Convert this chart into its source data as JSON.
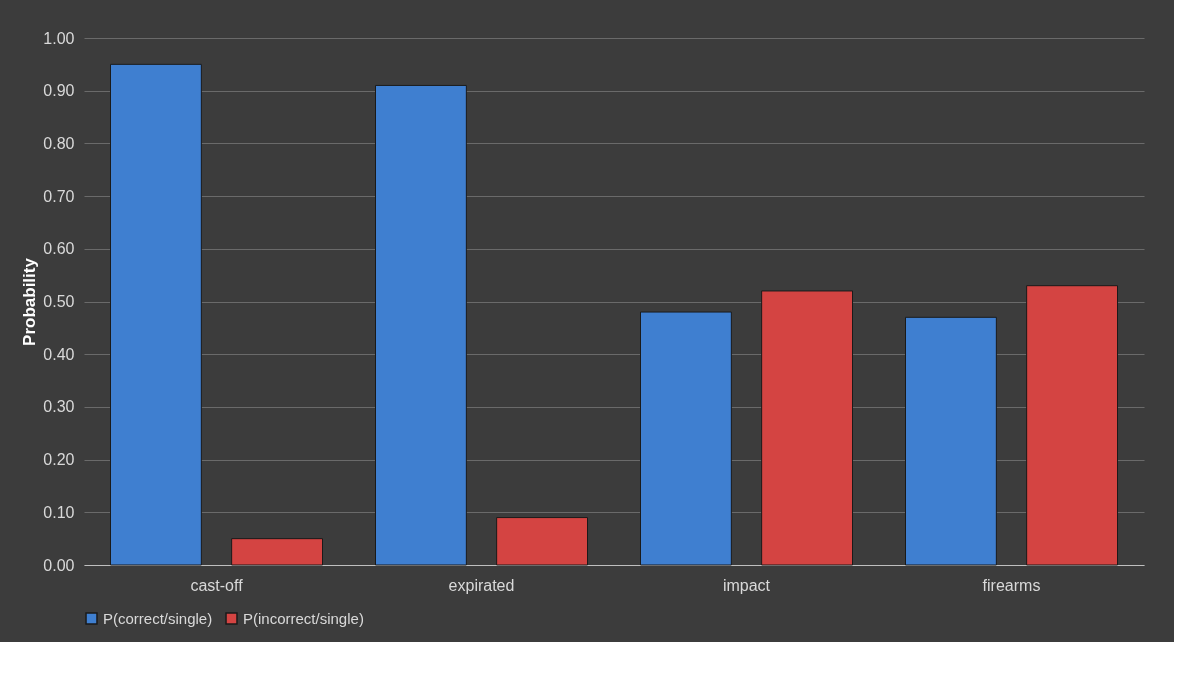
{
  "chart_data": {
    "type": "bar",
    "ylabel": "Probability",
    "categories": [
      "cast-off",
      "expirated",
      "impact",
      "firearms"
    ],
    "series": [
      {
        "name": "P(correct/single)",
        "color": "#3f7fd0",
        "values": [
          0.95,
          0.91,
          0.48,
          0.47
        ]
      },
      {
        "name": "P(incorrect/single)",
        "color": "#d44442",
        "values": [
          0.05,
          0.09,
          0.52,
          0.53
        ]
      }
    ],
    "ylim": [
      0,
      1
    ],
    "yticks": [
      {
        "value": 0,
        "label": "0.00"
      },
      {
        "value": 0.1,
        "label": "0.10"
      },
      {
        "value": 0.2,
        "label": "0.20"
      },
      {
        "value": 0.3,
        "label": "0.30"
      },
      {
        "value": 0.4,
        "label": "0.40"
      },
      {
        "value": 0.5,
        "label": "0.50"
      },
      {
        "value": 0.6,
        "label": "0.60"
      },
      {
        "value": 0.7,
        "label": "0.70"
      },
      {
        "value": 0.8,
        "label": "0.80"
      },
      {
        "value": 0.9,
        "label": "0.90"
      },
      {
        "value": 1,
        "label": "1.00"
      }
    ],
    "grid": "y",
    "legend": "bottom"
  }
}
